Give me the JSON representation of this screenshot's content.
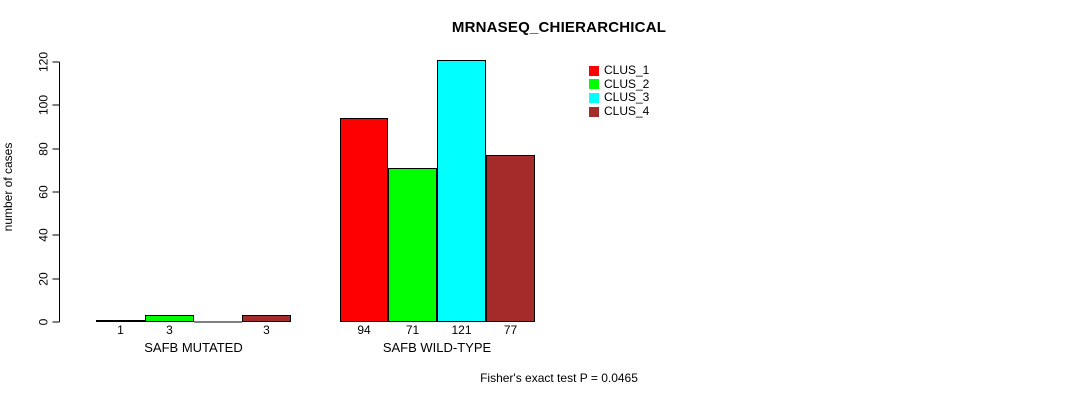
{
  "chart_data": {
    "type": "bar",
    "title": "MRNASEQ_CHIERARCHICAL",
    "ylabel": "number of cases",
    "xlabel": "",
    "annotation": "Fisher's exact test P = 0.0465",
    "y_ticks": [
      0,
      20,
      40,
      60,
      80,
      100,
      120
    ],
    "ylim": [
      0,
      120
    ],
    "grid": false,
    "legend_position": "top-right",
    "series_names": [
      "CLUS_1",
      "CLUS_2",
      "CLUS_3",
      "CLUS_4"
    ],
    "series_colors": [
      "#FF0000",
      "#00FF00",
      "#00FFFF",
      "#A52A2A"
    ],
    "groups": [
      {
        "label": "SAFB MUTATED",
        "values": [
          1,
          3,
          0,
          3
        ],
        "bar_labels": [
          "1",
          "3",
          "",
          "3"
        ]
      },
      {
        "label": "SAFB WILD-TYPE",
        "values": [
          94,
          71,
          121,
          77
        ],
        "bar_labels": [
          "94",
          "71",
          "121",
          "77"
        ]
      }
    ]
  }
}
